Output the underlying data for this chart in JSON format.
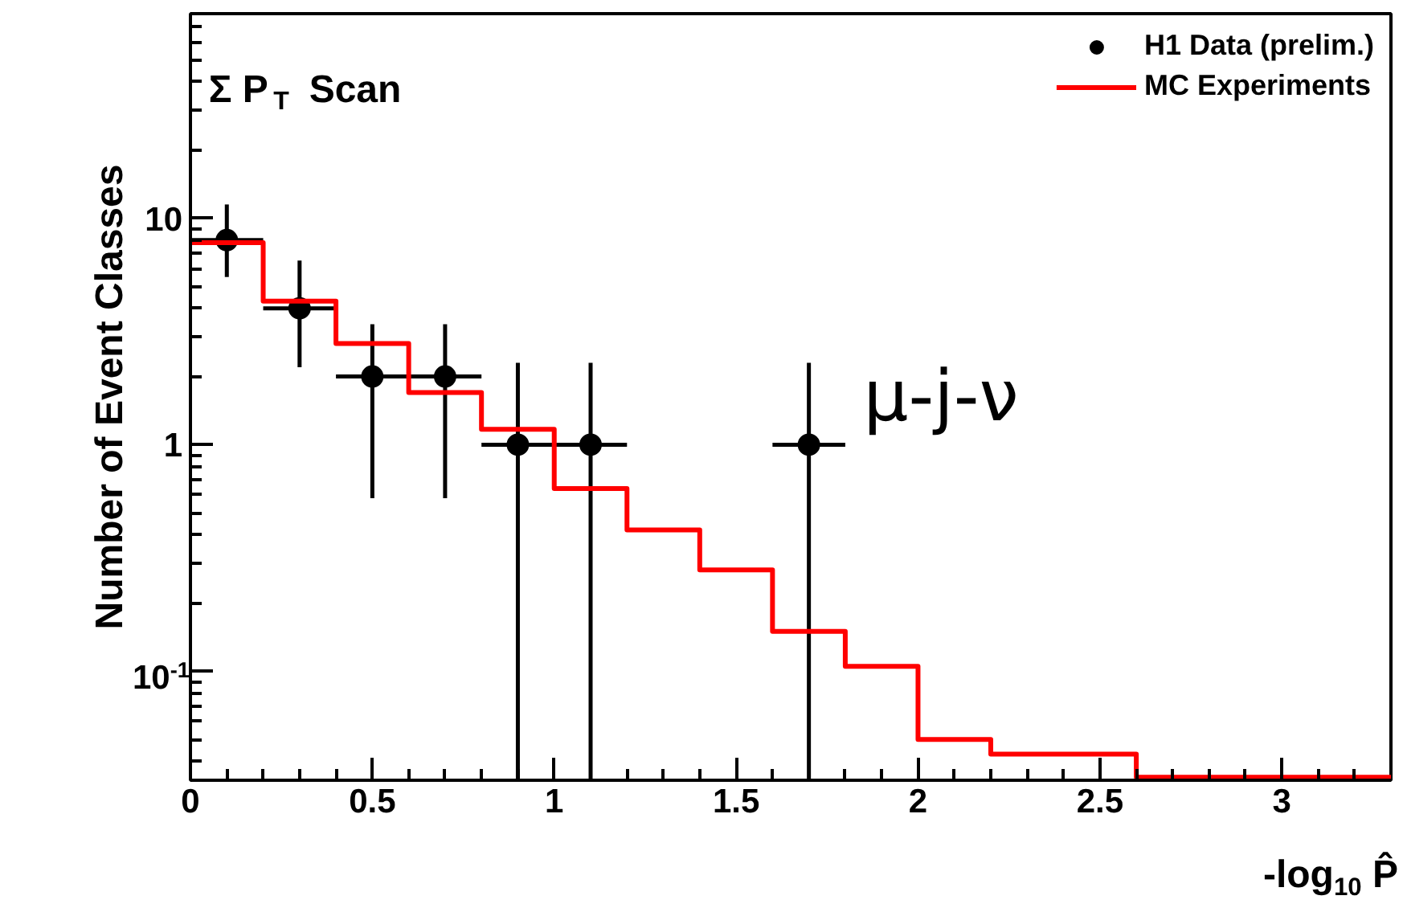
{
  "chart_data": {
    "type": "histogram",
    "xlabel": "-log$_{10}$ P̂",
    "ylabel": "Number of Event Classes",
    "annotations": [
      "Σ P$_{T}$ Scan",
      "μ-j-ν"
    ],
    "log": "y",
    "xlim": [
      0,
      3.3
    ],
    "xticks": [
      0,
      0.5,
      1,
      1.5,
      2,
      2.5,
      3
    ],
    "ylim": [
      0.033,
      80
    ],
    "yticks": [
      {
        "value": 0.1,
        "label": "10$^{-1}$"
      },
      1,
      10
    ],
    "legend": "top right",
    "grid": false,
    "series": [
      {
        "type": "scatter",
        "name": "H1 Data (prelim.)",
        "color": "#000000",
        "marker": "circle",
        "x": [
          0.1,
          0.3,
          0.5,
          0.7,
          0.9,
          1.1,
          1.7
        ],
        "values": [
          8,
          4,
          2,
          2,
          1,
          1,
          1
        ],
        "errors": [
          [
            5.5,
            11.5
          ],
          [
            2.2,
            6.5
          ],
          [
            0.58,
            3.4
          ],
          [
            0.58,
            3.4
          ],
          [
            0.033,
            2.3
          ],
          [
            0.033,
            2.3
          ],
          [
            0.033,
            2.3
          ]
        ],
        "xerrors": [
          0.1,
          0.1,
          0.1,
          0.1,
          0.1,
          0.1,
          0.1
        ]
      },
      {
        "type": "histogram",
        "name": "MC Experiments",
        "color": "#ff0000",
        "bins": [
          0,
          0.2,
          0.4,
          0.6,
          0.8,
          1.0,
          1.2,
          1.4,
          1.6,
          1.8,
          2.0,
          2.2,
          2.6,
          3.3
        ],
        "values": [
          7.8,
          4.3,
          2.8,
          1.7,
          1.17,
          0.64,
          0.42,
          0.28,
          0.15,
          0.105,
          0.05,
          0.043,
          0.034
        ]
      }
    ]
  }
}
